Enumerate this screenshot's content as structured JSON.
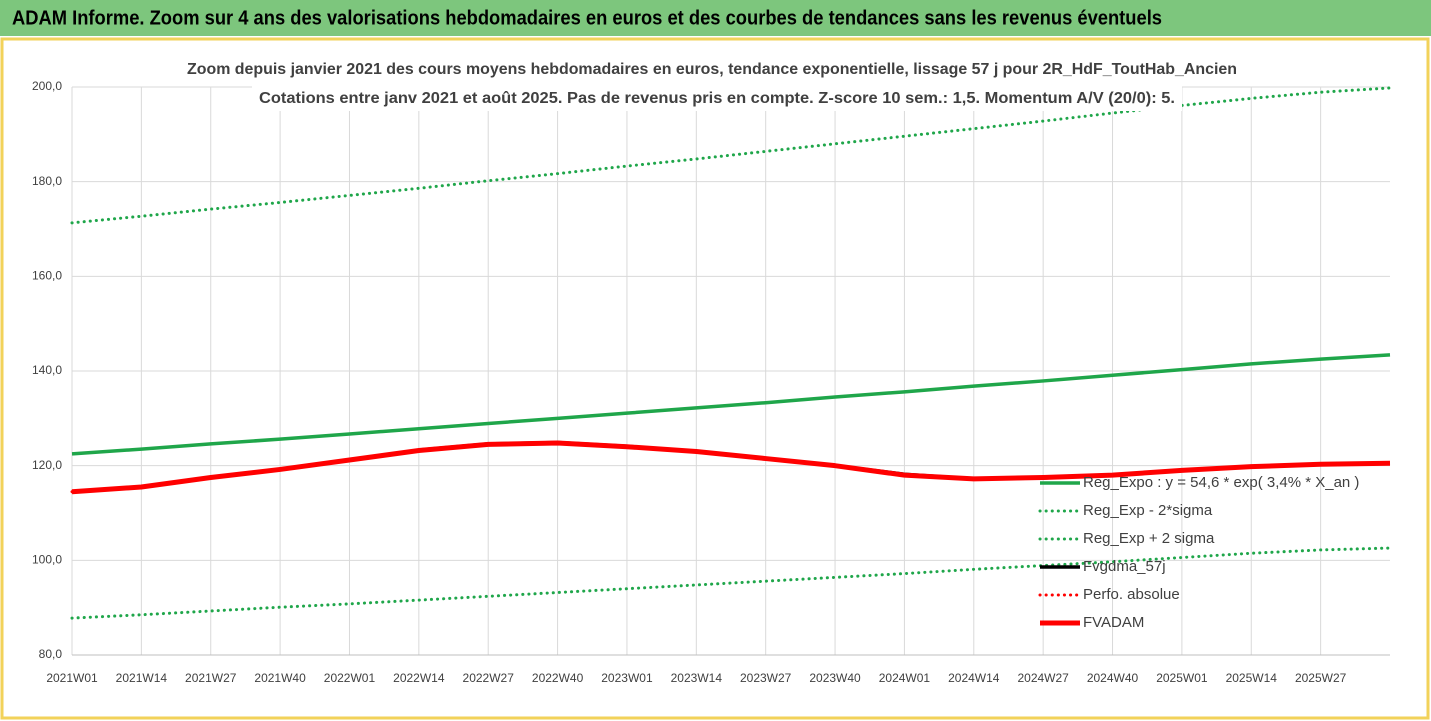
{
  "header": {
    "title": "ADAM Informe. Zoom sur 4 ans des valorisations hebdomadaires en euros et des courbes de tendances sans les revenus éventuels"
  },
  "chart_data": {
    "type": "line",
    "title": "Zoom depuis janvier 2021 des cours moyens hebdomadaires en euros, tendance exponentielle, lissage 57 j pour 2R_HdF_ToutHab_Ancien",
    "subtitle": "Cotations entre janv 2021 et août 2025.  Pas de revenus pris en compte. Z-score 10 sem.: 1,5. Momentum A/V (20/0): 5.",
    "categories": [
      "2021W01",
      "2021W14",
      "2021W27",
      "2021W40",
      "2022W01",
      "2022W14",
      "2022W27",
      "2022W40",
      "2023W01",
      "2023W14",
      "2023W27",
      "2023W40",
      "2024W01",
      "2024W14",
      "2024W27",
      "2024W40",
      "2025W01",
      "2025W14",
      "2025W27",
      null
    ],
    "ylim": [
      80,
      200
    ],
    "yticks": [
      {
        "value": 80,
        "label": "80,0"
      },
      {
        "value": 100,
        "label": "100,0"
      },
      {
        "value": 120,
        "label": "120,0"
      },
      {
        "value": 140,
        "label": "140,0"
      },
      {
        "value": 160,
        "label": "160,0"
      },
      {
        "value": 180,
        "label": "180,0"
      },
      {
        "value": 200,
        "label": "200,0"
      }
    ],
    "grid": true,
    "legend": "right",
    "series": [
      {
        "name": "Reg_Expo : y = 54,6 * exp( 3,4% *  X_an )",
        "color": "#1fa64a",
        "style": "solid",
        "values": [
          122.5,
          123.5,
          124.6,
          125.6,
          126.7,
          127.8,
          128.9,
          130.0,
          131.1,
          132.2,
          133.3,
          134.5,
          135.6,
          136.8,
          137.9,
          139.1,
          140.3,
          141.5,
          142.5,
          143.4
        ]
      },
      {
        "name": "Reg_Exp - 2*sigma",
        "color": "#1fa64a",
        "style": "dotted",
        "values": [
          87.8,
          88.5,
          89.3,
          90.1,
          90.8,
          91.6,
          92.4,
          93.2,
          94.0,
          94.8,
          95.6,
          96.4,
          97.2,
          98.1,
          98.9,
          99.7,
          100.6,
          101.5,
          102.2,
          102.6
        ]
      },
      {
        "name": "Reg_Exp + 2 sigma",
        "color": "#1fa64a",
        "style": "dotted",
        "values": [
          171.3,
          172.7,
          174.2,
          175.6,
          177.1,
          178.6,
          180.2,
          181.7,
          183.3,
          184.8,
          186.4,
          188.0,
          189.6,
          191.2,
          192.8,
          194.5,
          196.1,
          197.6,
          198.9,
          199.8
        ]
      },
      {
        "name": "Fvgdma_57j",
        "color": "#000000",
        "style": "solid",
        "values": [
          114.5,
          115.5,
          117.5,
          119.2,
          121.2,
          123.3,
          124.6,
          124.9,
          124.1,
          123.0,
          121.5,
          120.0,
          118.2,
          117.2,
          117.4,
          118.0,
          119.0,
          119.8,
          120.3,
          120.5
        ]
      },
      {
        "name": "Perfo. absolue",
        "color": "#ff0000",
        "style": "dotted",
        "values": [
          114.5,
          115.5,
          117.5,
          119.2,
          121.2,
          123.2,
          124.5,
          124.8,
          124.0,
          123.0,
          121.5,
          120.0,
          118.0,
          117.2,
          117.5,
          118.0,
          119.0,
          119.8,
          120.3,
          120.5
        ]
      },
      {
        "name": "FVADAM",
        "color": "#ff0000",
        "style": "thick",
        "values": [
          114.5,
          115.5,
          117.5,
          119.2,
          121.2,
          123.2,
          124.5,
          124.8,
          124.0,
          123.0,
          121.5,
          120.0,
          118.0,
          117.2,
          117.5,
          118.0,
          119.0,
          119.8,
          120.3,
          120.5
        ]
      }
    ]
  }
}
